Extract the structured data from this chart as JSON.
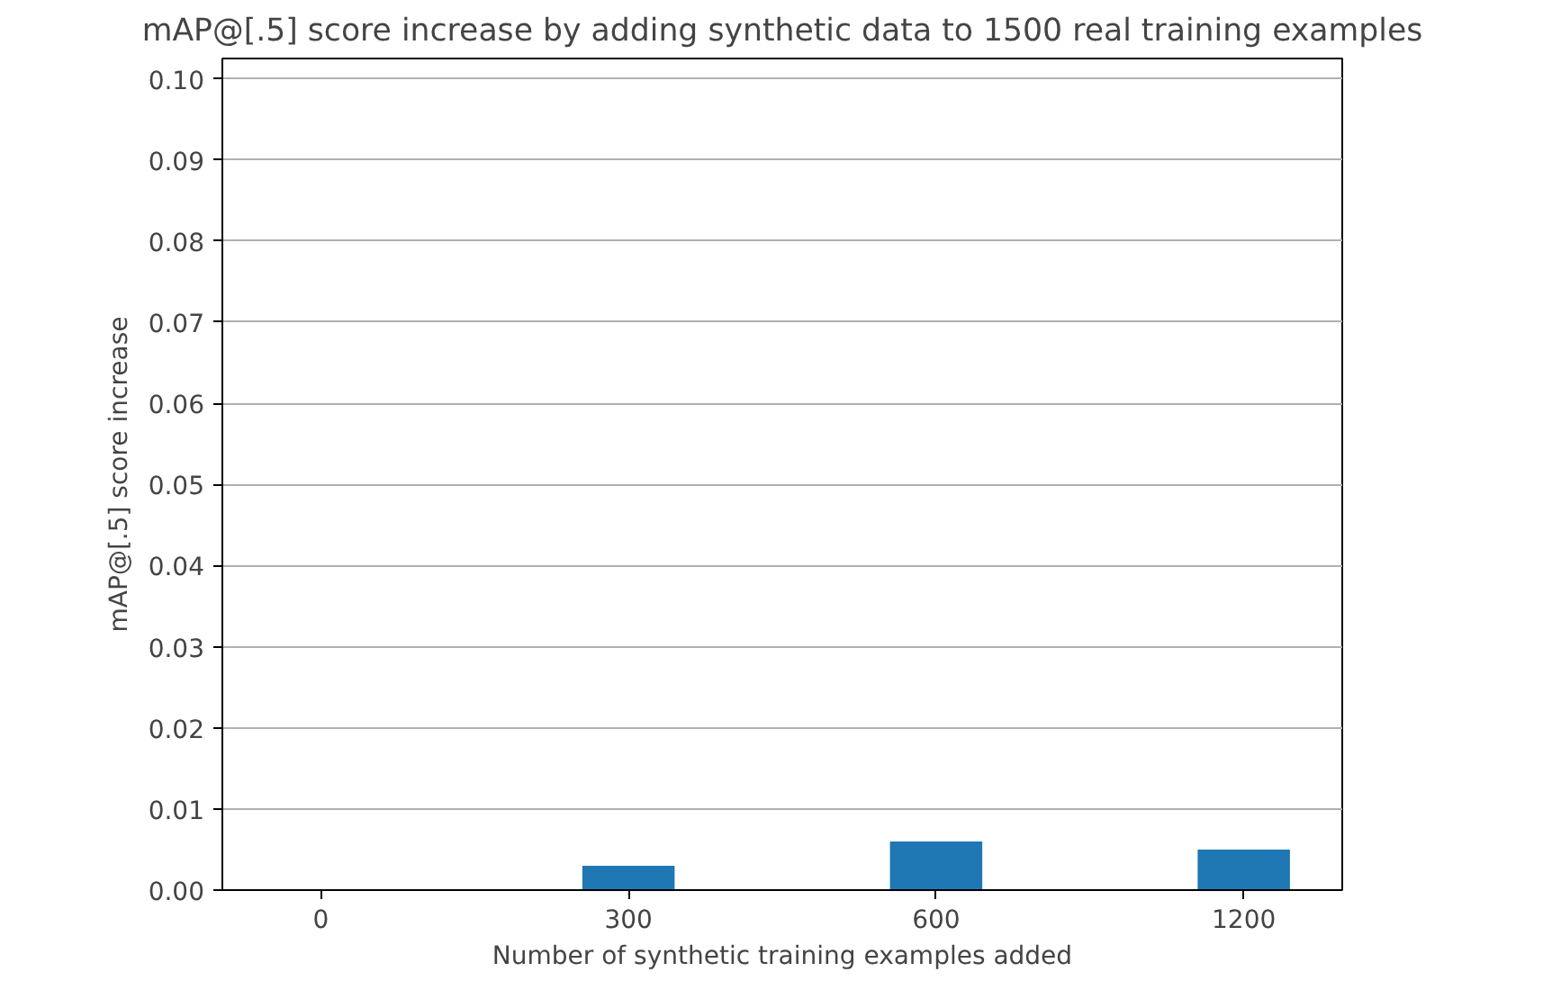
{
  "chart_data": {
    "type": "bar",
    "title": "mAP@[.5] score increase by adding synthetic data to 1500 real training examples",
    "xlabel": "Number of synthetic training examples added",
    "ylabel": "mAP@[.5] score increase",
    "categories": [
      "0",
      "300",
      "600",
      "1200"
    ],
    "values": [
      0,
      0.003,
      0.006,
      0.005
    ],
    "color": "#1f77b4",
    "ylim": [
      0,
      0.1025
    ],
    "yticks": [
      {
        "value": 0,
        "label": "0.00"
      },
      {
        "value": 0.01,
        "label": "0.01"
      },
      {
        "value": 0.02,
        "label": "0.02"
      },
      {
        "value": 0.03,
        "label": "0.03"
      },
      {
        "value": 0.04,
        "label": "0.04"
      },
      {
        "value": 0.05,
        "label": "0.05"
      },
      {
        "value": 0.06,
        "label": "0.06"
      },
      {
        "value": 0.07,
        "label": "0.07"
      },
      {
        "value": 0.08,
        "label": "0.08"
      },
      {
        "value": 0.09,
        "label": "0.09"
      },
      {
        "value": 0.1,
        "label": "0.10"
      }
    ],
    "grid": "y"
  }
}
